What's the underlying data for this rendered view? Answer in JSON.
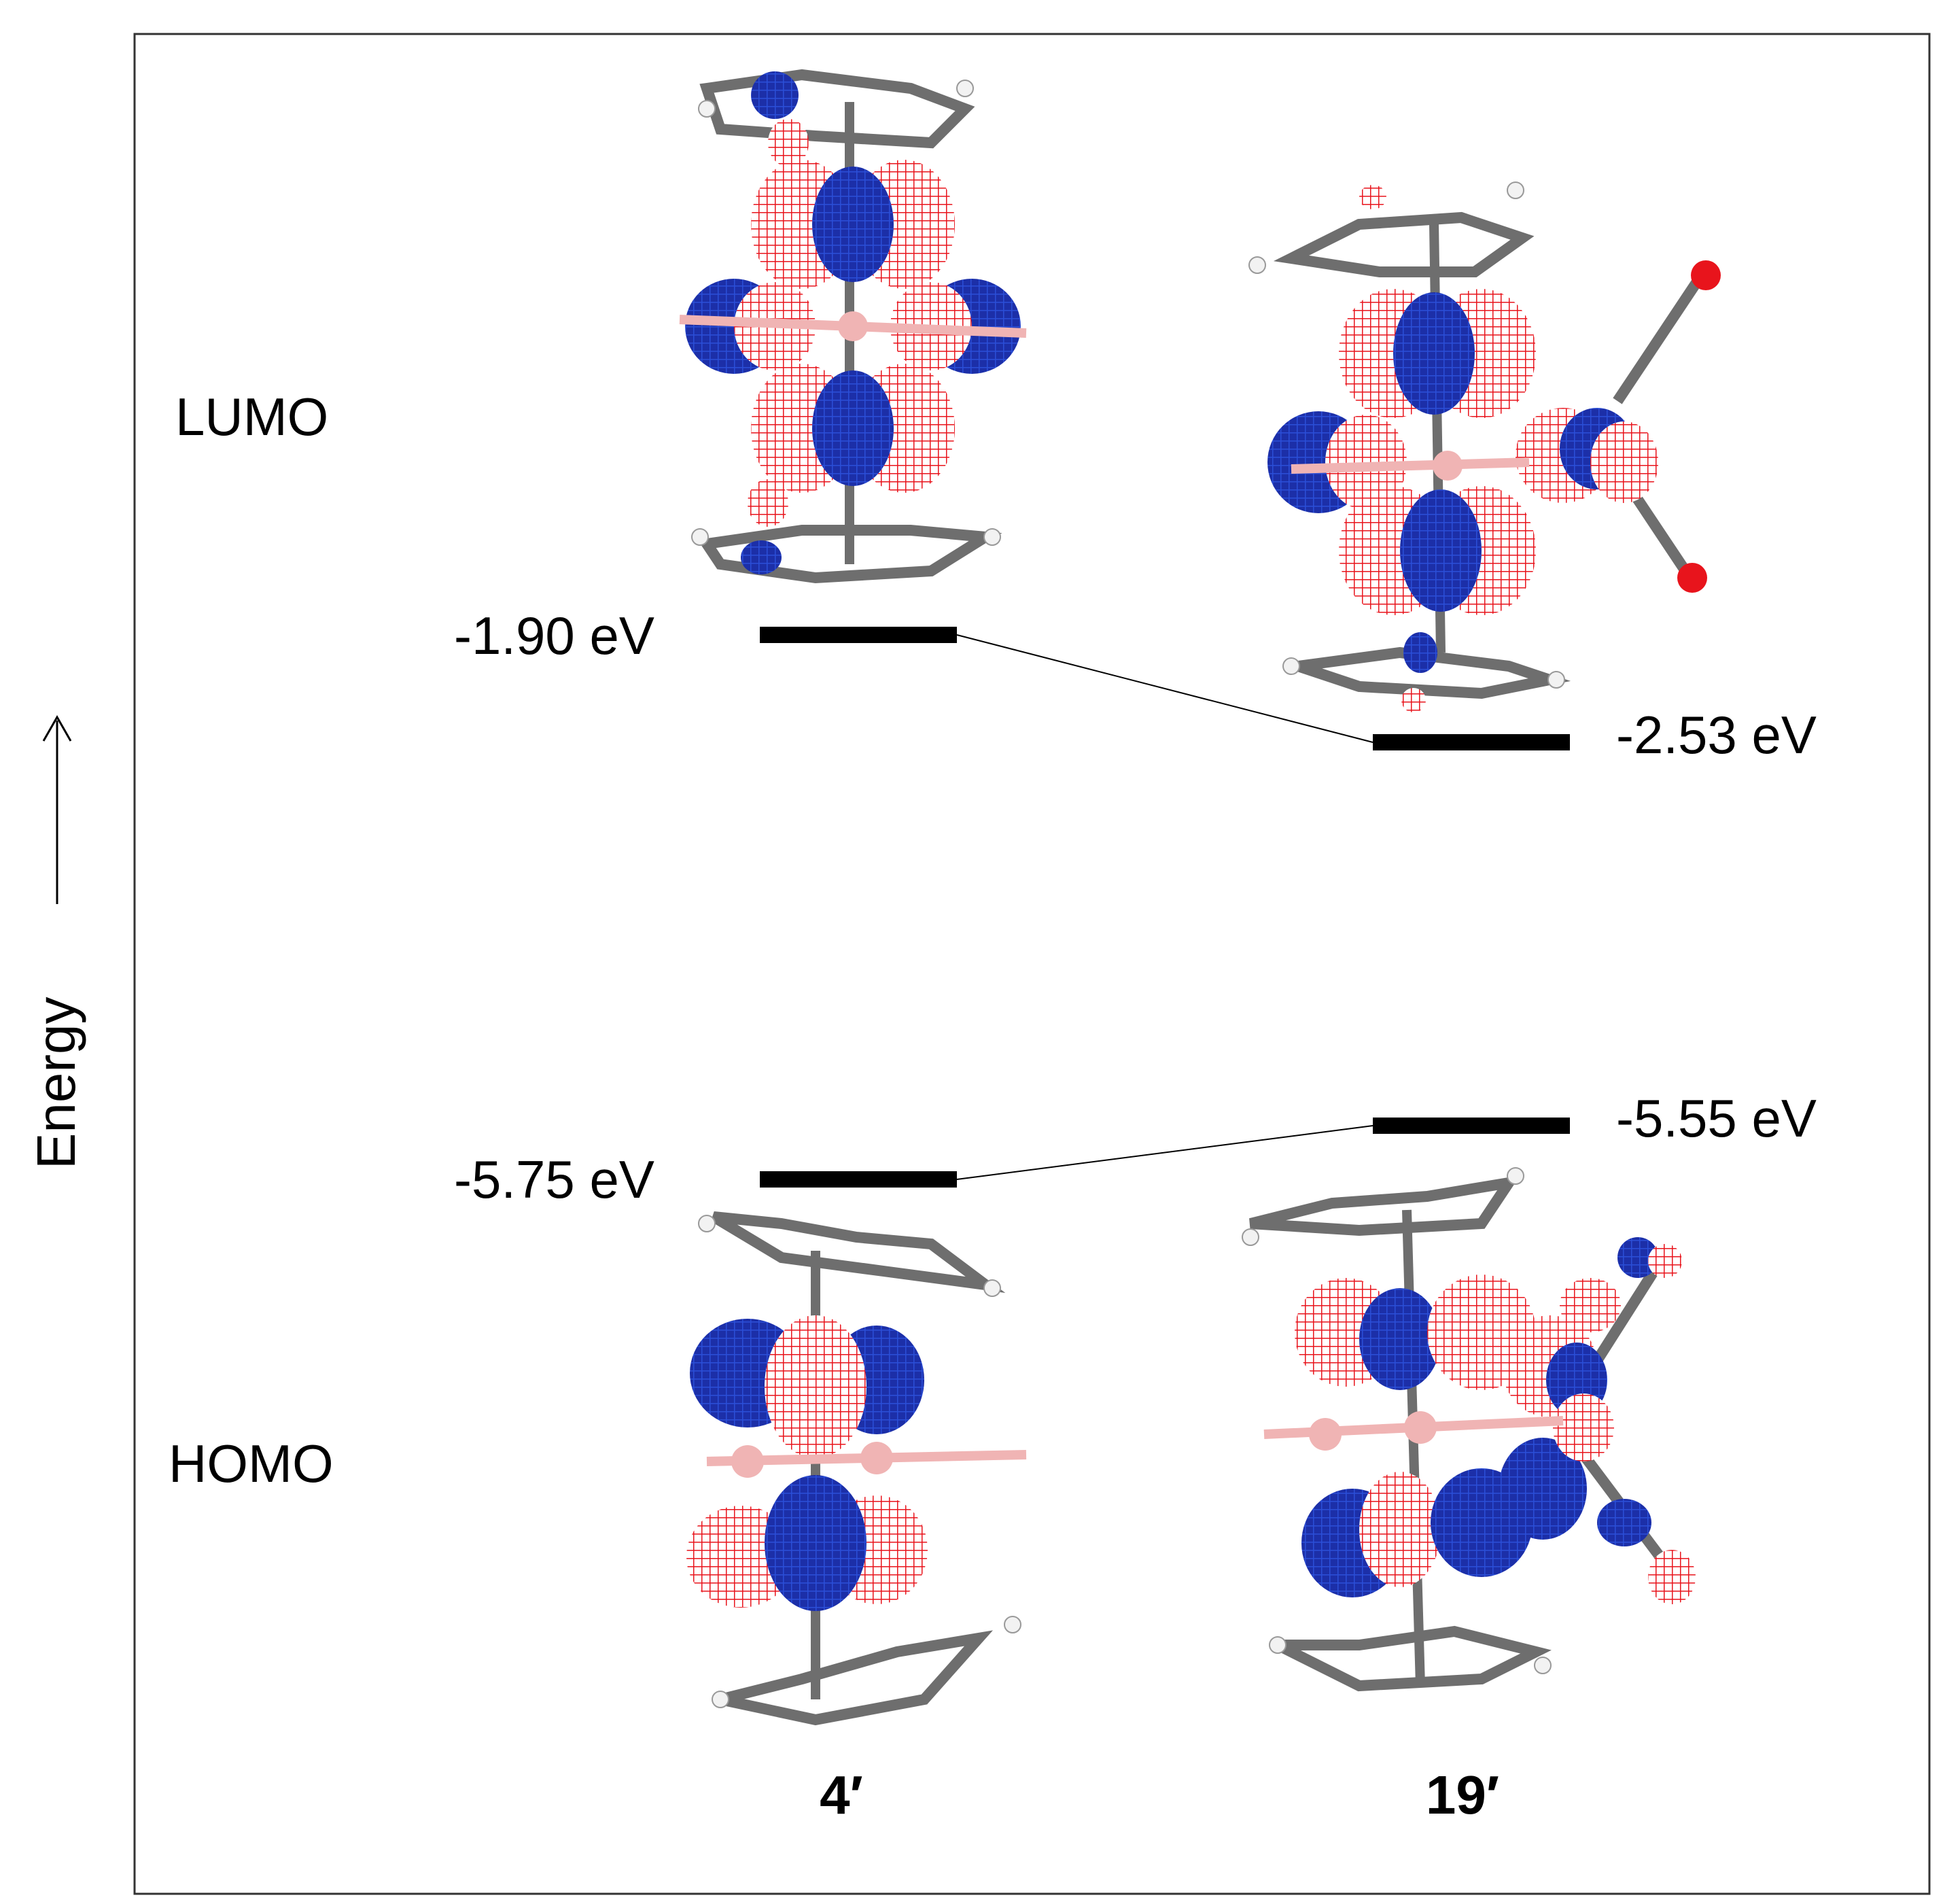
{
  "axis": {
    "label": "Energy"
  },
  "rows": {
    "lumo_label": "LUMO",
    "homo_label": "HOMO"
  },
  "compounds": [
    {
      "label": "4′",
      "lumo_ev": -1.9,
      "lumo_text": "-1.90 eV",
      "homo_ev": -5.75,
      "homo_text": "-5.75 eV"
    },
    {
      "label": "19′",
      "lumo_ev": -2.53,
      "lumo_text": "-2.53 eV",
      "homo_ev": -5.55,
      "homo_text": "-5.55 eV"
    }
  ],
  "colors": {
    "positive_lobe": "#e8141c",
    "negative_lobe": "#1c2fa8",
    "carbon": "#6e6e6e",
    "boron": "#f0b4b4",
    "hydrogen": "#f2f2f2",
    "metal_bond": "#1f8fb5",
    "oxygen": "#e8141c"
  }
}
